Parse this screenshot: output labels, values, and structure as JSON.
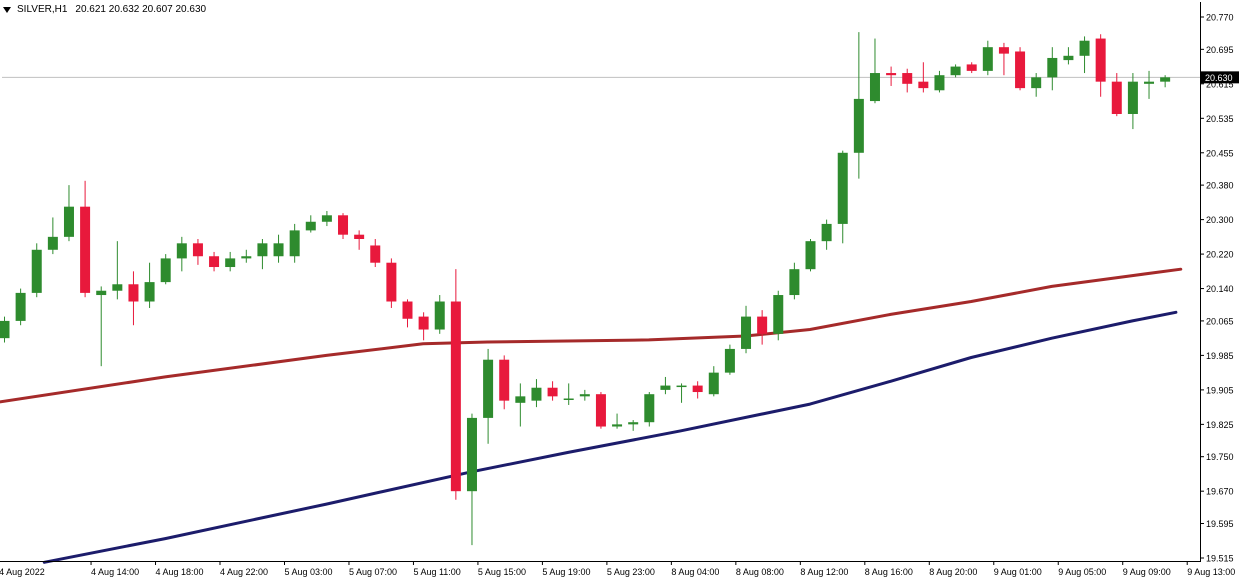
{
  "header": {
    "symbol": "SILVER,H1",
    "ohlc": "20.621 20.632 20.607 20.630"
  },
  "price_marker": "20.630",
  "colors": {
    "bull": "#2e8b2e",
    "bear": "#e8193c",
    "ma_fast": "#a52a2a",
    "ma_slow": "#1c1c6b",
    "axis": "#000000",
    "price_line": "#c0c0c0",
    "marker_bg": "#000000",
    "marker_text": "#ffffff"
  },
  "chart_data": {
    "type": "candlestick",
    "symbol": "SILVER",
    "timeframe": "H1",
    "ylim": [
      19.51,
      20.79
    ],
    "y_ticks": [
      "20.770",
      "20.695",
      "20.615",
      "20.535",
      "20.455",
      "20.380",
      "20.300",
      "20.220",
      "20.140",
      "20.065",
      "19.985",
      "19.905",
      "19.825",
      "19.750",
      "19.670",
      "19.595",
      "19.515"
    ],
    "x_ticks": [
      {
        "label": "4 Aug 2022",
        "index": -0.3
      },
      {
        "label": "4 Aug 14:00",
        "index": 5.4
      },
      {
        "label": "4 Aug 18:00",
        "index": 9.4
      },
      {
        "label": "4 Aug 22:00",
        "index": 13.4
      },
      {
        "label": "5 Aug 03:00",
        "index": 17.4
      },
      {
        "label": "5 Aug 07:00",
        "index": 21.4
      },
      {
        "label": "5 Aug 11:00",
        "index": 25.4
      },
      {
        "label": "5 Aug 15:00",
        "index": 29.4
      },
      {
        "label": "5 Aug 19:00",
        "index": 33.4
      },
      {
        "label": "5 Aug 23:00",
        "index": 37.4
      },
      {
        "label": "8 Aug 04:00",
        "index": 41.4
      },
      {
        "label": "8 Aug 08:00",
        "index": 45.4
      },
      {
        "label": "8 Aug 12:00",
        "index": 49.4
      },
      {
        "label": "8 Aug 16:00",
        "index": 53.4
      },
      {
        "label": "8 Aug 20:00",
        "index": 57.4
      },
      {
        "label": "9 Aug 01:00",
        "index": 61.4
      },
      {
        "label": "9 Aug 05:00",
        "index": 65.4
      },
      {
        "label": "9 Aug 09:00",
        "index": 69.4
      },
      {
        "label": "9 Aug 13:00",
        "index": 73.4
      }
    ],
    "candles": [
      {
        "o": 20.025,
        "h": 20.075,
        "l": 20.015,
        "c": 20.065
      },
      {
        "o": 20.065,
        "h": 20.14,
        "l": 20.055,
        "c": 20.13
      },
      {
        "o": 20.13,
        "h": 20.245,
        "l": 20.12,
        "c": 20.23
      },
      {
        "o": 20.23,
        "h": 20.305,
        "l": 20.22,
        "c": 20.26
      },
      {
        "o": 20.26,
        "h": 20.38,
        "l": 20.25,
        "c": 20.33
      },
      {
        "o": 20.33,
        "h": 20.39,
        "l": 20.12,
        "c": 20.13
      },
      {
        "o": 20.125,
        "h": 20.145,
        "l": 19.96,
        "c": 20.135
      },
      {
        "o": 20.135,
        "h": 20.25,
        "l": 20.115,
        "c": 20.15
      },
      {
        "o": 20.15,
        "h": 20.18,
        "l": 20.055,
        "c": 20.11
      },
      {
        "o": 20.11,
        "h": 20.2,
        "l": 20.095,
        "c": 20.155
      },
      {
        "o": 20.155,
        "h": 20.22,
        "l": 20.15,
        "c": 20.21
      },
      {
        "o": 20.21,
        "h": 20.26,
        "l": 20.18,
        "c": 20.245
      },
      {
        "o": 20.245,
        "h": 20.255,
        "l": 20.195,
        "c": 20.215
      },
      {
        "o": 20.215,
        "h": 20.225,
        "l": 20.18,
        "c": 20.19
      },
      {
        "o": 20.19,
        "h": 20.225,
        "l": 20.18,
        "c": 20.21
      },
      {
        "o": 20.21,
        "h": 20.23,
        "l": 20.2,
        "c": 20.215
      },
      {
        "o": 20.215,
        "h": 20.255,
        "l": 20.185,
        "c": 20.245
      },
      {
        "o": 20.215,
        "h": 20.265,
        "l": 20.2,
        "c": 20.245
      },
      {
        "o": 20.215,
        "h": 20.29,
        "l": 20.2,
        "c": 20.275
      },
      {
        "o": 20.275,
        "h": 20.31,
        "l": 20.27,
        "c": 20.295
      },
      {
        "o": 20.295,
        "h": 20.32,
        "l": 20.285,
        "c": 20.31
      },
      {
        "o": 20.31,
        "h": 20.315,
        "l": 20.255,
        "c": 20.265
      },
      {
        "o": 20.265,
        "h": 20.275,
        "l": 20.23,
        "c": 20.255
      },
      {
        "o": 20.24,
        "h": 20.255,
        "l": 20.19,
        "c": 20.2
      },
      {
        "o": 20.2,
        "h": 20.21,
        "l": 20.095,
        "c": 20.11
      },
      {
        "o": 20.11,
        "h": 20.115,
        "l": 20.05,
        "c": 20.07
      },
      {
        "o": 20.075,
        "h": 20.085,
        "l": 20.02,
        "c": 20.045
      },
      {
        "o": 20.045,
        "h": 20.125,
        "l": 20.035,
        "c": 20.11
      },
      {
        "o": 20.11,
        "h": 20.185,
        "l": 19.65,
        "c": 19.67
      },
      {
        "o": 19.67,
        "h": 19.85,
        "l": 19.545,
        "c": 19.84
      },
      {
        "o": 19.84,
        "h": 20.0,
        "l": 19.78,
        "c": 19.975
      },
      {
        "o": 19.975,
        "h": 19.985,
        "l": 19.86,
        "c": 19.88
      },
      {
        "o": 19.875,
        "h": 19.92,
        "l": 19.82,
        "c": 19.89
      },
      {
        "o": 19.88,
        "h": 19.93,
        "l": 19.865,
        "c": 19.91
      },
      {
        "o": 19.91,
        "h": 19.925,
        "l": 19.88,
        "c": 19.89
      },
      {
        "o": 19.885,
        "h": 19.92,
        "l": 19.87,
        "c": 19.885
      },
      {
        "o": 19.89,
        "h": 19.905,
        "l": 19.88,
        "c": 19.895
      },
      {
        "o": 19.895,
        "h": 19.9,
        "l": 19.815,
        "c": 19.82
      },
      {
        "o": 19.82,
        "h": 19.85,
        "l": 19.815,
        "c": 19.825
      },
      {
        "o": 19.825,
        "h": 19.835,
        "l": 19.81,
        "c": 19.83
      },
      {
        "o": 19.83,
        "h": 19.9,
        "l": 19.82,
        "c": 19.895
      },
      {
        "o": 19.905,
        "h": 19.935,
        "l": 19.895,
        "c": 19.915
      },
      {
        "o": 19.915,
        "h": 19.92,
        "l": 19.875,
        "c": 19.915
      },
      {
        "o": 19.915,
        "h": 19.925,
        "l": 19.885,
        "c": 19.9
      },
      {
        "o": 19.895,
        "h": 19.96,
        "l": 19.89,
        "c": 19.945
      },
      {
        "o": 19.945,
        "h": 20.01,
        "l": 19.94,
        "c": 20.0
      },
      {
        "o": 20.0,
        "h": 20.1,
        "l": 19.99,
        "c": 20.075
      },
      {
        "o": 20.075,
        "h": 20.09,
        "l": 20.01,
        "c": 20.035
      },
      {
        "o": 20.035,
        "h": 20.135,
        "l": 20.02,
        "c": 20.125
      },
      {
        "o": 20.125,
        "h": 20.2,
        "l": 20.115,
        "c": 20.185
      },
      {
        "o": 20.185,
        "h": 20.255,
        "l": 20.18,
        "c": 20.25
      },
      {
        "o": 20.25,
        "h": 20.3,
        "l": 20.23,
        "c": 20.29
      },
      {
        "o": 20.29,
        "h": 20.46,
        "l": 20.245,
        "c": 20.455
      },
      {
        "o": 20.455,
        "h": 20.735,
        "l": 20.395,
        "c": 20.58
      },
      {
        "o": 20.575,
        "h": 20.72,
        "l": 20.57,
        "c": 20.64
      },
      {
        "o": 20.64,
        "h": 20.655,
        "l": 20.61,
        "c": 20.635
      },
      {
        "o": 20.64,
        "h": 20.65,
        "l": 20.595,
        "c": 20.615
      },
      {
        "o": 20.62,
        "h": 20.665,
        "l": 20.595,
        "c": 20.605
      },
      {
        "o": 20.6,
        "h": 20.645,
        "l": 20.595,
        "c": 20.635
      },
      {
        "o": 20.635,
        "h": 20.66,
        "l": 20.63,
        "c": 20.655
      },
      {
        "o": 20.66,
        "h": 20.665,
        "l": 20.64,
        "c": 20.645
      },
      {
        "o": 20.645,
        "h": 20.715,
        "l": 20.635,
        "c": 20.7
      },
      {
        "o": 20.7,
        "h": 20.71,
        "l": 20.635,
        "c": 20.685
      },
      {
        "o": 20.69,
        "h": 20.7,
        "l": 20.6,
        "c": 20.605
      },
      {
        "o": 20.605,
        "h": 20.64,
        "l": 20.585,
        "c": 20.63
      },
      {
        "o": 20.63,
        "h": 20.7,
        "l": 20.6,
        "c": 20.675
      },
      {
        "o": 20.67,
        "h": 20.7,
        "l": 20.66,
        "c": 20.68
      },
      {
        "o": 20.68,
        "h": 20.725,
        "l": 20.64,
        "c": 20.715
      },
      {
        "o": 20.72,
        "h": 20.73,
        "l": 20.585,
        "c": 20.62
      },
      {
        "o": 20.62,
        "h": 20.64,
        "l": 20.54,
        "c": 20.545
      },
      {
        "o": 20.545,
        "h": 20.64,
        "l": 20.51,
        "c": 20.62
      },
      {
        "o": 20.615,
        "h": 20.645,
        "l": 20.58,
        "c": 20.62
      },
      {
        "o": 20.62,
        "h": 20.635,
        "l": 20.607,
        "c": 20.63
      }
    ],
    "ma_fast": {
      "points": [
        [
          -0.3,
          19.877
        ],
        [
          10,
          19.935
        ],
        [
          20,
          19.985
        ],
        [
          26,
          20.012
        ],
        [
          30,
          20.016
        ],
        [
          40,
          20.021
        ],
        [
          46,
          20.03
        ],
        [
          50,
          20.045
        ],
        [
          55,
          20.08
        ],
        [
          60,
          20.11
        ],
        [
          65,
          20.145
        ],
        [
          70,
          20.17
        ],
        [
          73,
          20.185
        ]
      ]
    },
    "ma_slow": {
      "points": [
        [
          2.5,
          19.505
        ],
        [
          10,
          19.56
        ],
        [
          20,
          19.64
        ],
        [
          29,
          19.715
        ],
        [
          35,
          19.76
        ],
        [
          42,
          19.81
        ],
        [
          50,
          19.872
        ],
        [
          55,
          19.925
        ],
        [
          60,
          19.98
        ],
        [
          65,
          20.025
        ],
        [
          70,
          20.065
        ],
        [
          72.7,
          20.085
        ]
      ]
    },
    "last_price": 20.63
  }
}
